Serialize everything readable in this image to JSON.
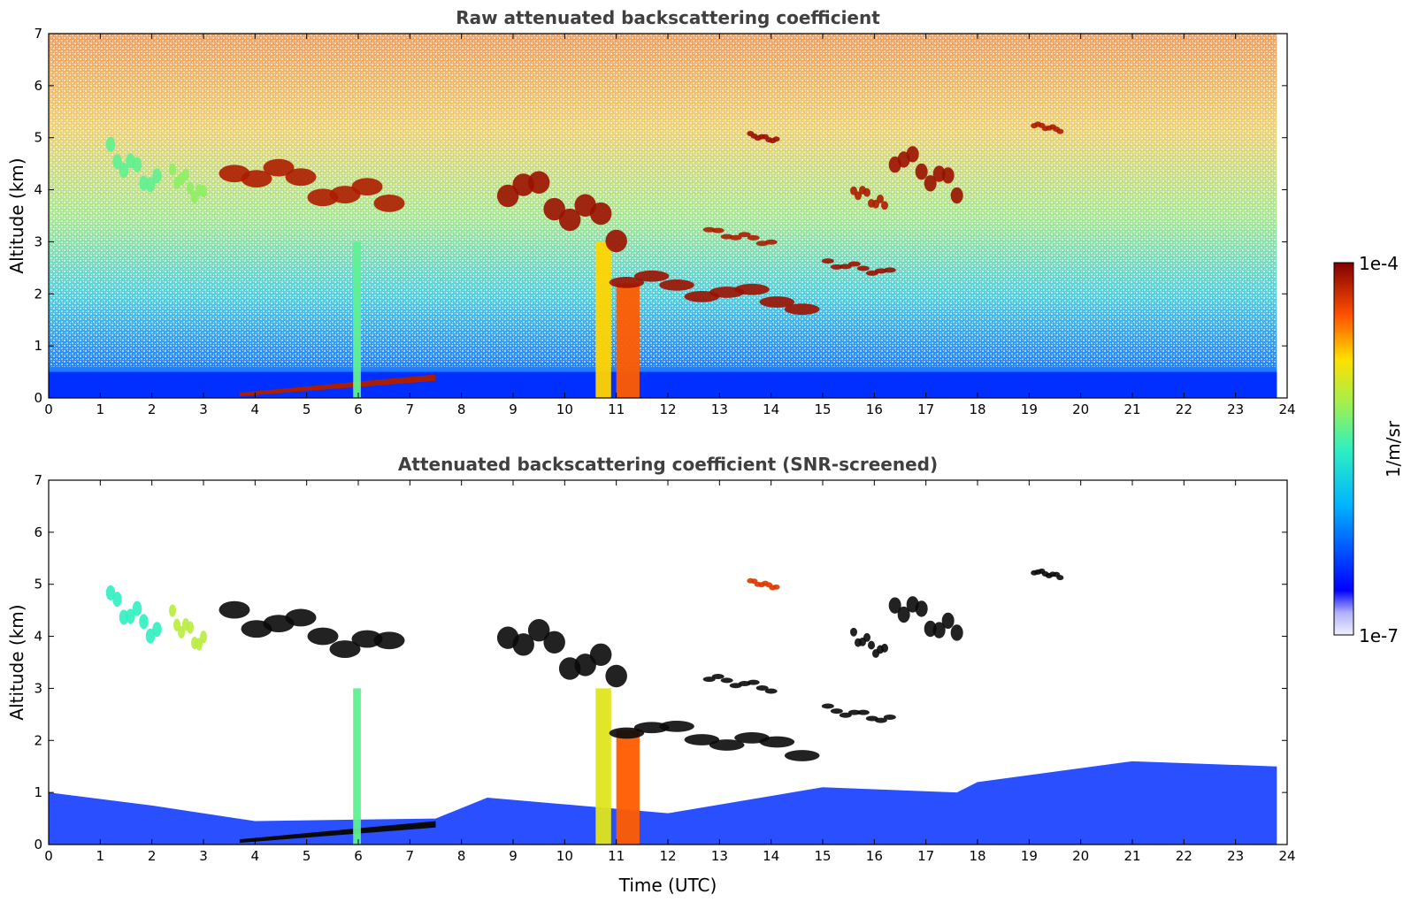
{
  "chart_data": [
    {
      "type": "heatmap",
      "title": "Raw attenuated backscattering coefficient",
      "xlabel": "",
      "ylabel": "Altitude (km)",
      "xlim": [
        0,
        24
      ],
      "ylim": [
        0,
        7
      ],
      "x_ticks": [
        "0",
        "1",
        "2",
        "3",
        "4",
        "5",
        "6",
        "7",
        "8",
        "9",
        "10",
        "11",
        "12",
        "13",
        "14",
        "15",
        "16",
        "17",
        "18",
        "19",
        "20",
        "21",
        "22",
        "23",
        "24"
      ],
      "y_ticks": [
        "0",
        "1",
        "2",
        "3",
        "4",
        "5",
        "6",
        "7"
      ],
      "data_end_hour": 23.8,
      "colorscale": "jet, log",
      "features": [
        {
          "kind": "boundary-layer",
          "x_start": 0,
          "x_end": 23.8,
          "y_bottom": 0,
          "y_top": 0.5,
          "level": 0.18
        },
        {
          "kind": "aerosol-layer-top",
          "x_start": 3.7,
          "x_end": 7.5,
          "y_bottom": 0.1,
          "y_top": 0.45,
          "level": 0.95
        },
        {
          "kind": "precipitation-column",
          "x_start": 5.9,
          "x_end": 6.05,
          "y_bottom": 0,
          "y_top": 3.0,
          "level": 0.55
        },
        {
          "kind": "precipitation-column",
          "x_start": 10.6,
          "x_end": 10.9,
          "y_bottom": 0,
          "y_top": 3.0,
          "level": 0.75
        },
        {
          "kind": "precipitation-column",
          "x_start": 11.0,
          "x_end": 11.45,
          "y_bottom": 0,
          "y_top": 2.2,
          "level": 0.85
        },
        {
          "kind": "cloud",
          "x_start": 1.2,
          "x_end": 2.1,
          "y_bottom": 3.8,
          "y_top": 5.0,
          "level": 0.55
        },
        {
          "kind": "cloud",
          "x_start": 2.4,
          "x_end": 3.0,
          "y_bottom": 3.6,
          "y_top": 4.6,
          "level": 0.6
        },
        {
          "kind": "cloud",
          "x_start": 3.6,
          "x_end": 6.6,
          "y_bottom": 3.4,
          "y_top": 4.8,
          "level": 0.95
        },
        {
          "kind": "cloud",
          "x_start": 8.9,
          "x_end": 11.0,
          "y_bottom": 2.8,
          "y_top": 4.6,
          "level": 0.97
        },
        {
          "kind": "cloud",
          "x_start": 11.2,
          "x_end": 14.6,
          "y_bottom": 1.6,
          "y_top": 2.5,
          "level": 0.97
        },
        {
          "kind": "cloud",
          "x_start": 12.8,
          "x_end": 14.0,
          "y_bottom": 2.9,
          "y_top": 3.3,
          "level": 0.95
        },
        {
          "kind": "cloud",
          "x_start": 13.6,
          "x_end": 14.1,
          "y_bottom": 4.9,
          "y_top": 5.1,
          "level": 0.97
        },
        {
          "kind": "cloud",
          "x_start": 15.1,
          "x_end": 16.3,
          "y_bottom": 2.3,
          "y_top": 2.7,
          "level": 0.97
        },
        {
          "kind": "cloud",
          "x_start": 15.6,
          "x_end": 16.2,
          "y_bottom": 3.5,
          "y_top": 4.2,
          "level": 0.95
        },
        {
          "kind": "cloud",
          "x_start": 16.4,
          "x_end": 17.6,
          "y_bottom": 3.7,
          "y_top": 5.0,
          "level": 0.97
        },
        {
          "kind": "cloud",
          "x_start": 19.1,
          "x_end": 19.6,
          "y_bottom": 5.1,
          "y_top": 5.3,
          "level": 0.95
        }
      ]
    },
    {
      "type": "heatmap",
      "title": "Attenuated backscattering coefficient (SNR-screened)",
      "xlabel": "Time (UTC)",
      "ylabel": "Altitude (km)",
      "xlim": [
        0,
        24
      ],
      "ylim": [
        0,
        7
      ],
      "x_ticks": [
        "0",
        "1",
        "2",
        "3",
        "4",
        "5",
        "6",
        "7",
        "8",
        "9",
        "10",
        "11",
        "12",
        "13",
        "14",
        "15",
        "16",
        "17",
        "18",
        "19",
        "20",
        "21",
        "22",
        "23",
        "24"
      ],
      "y_ticks": [
        "0",
        "1",
        "2",
        "3",
        "4",
        "5",
        "6",
        "7"
      ],
      "data_end_hour": 23.8,
      "colorscale": "jet, log",
      "screened_boundary_layer_top": [
        {
          "x": 0,
          "y": 1.0
        },
        {
          "x": 2,
          "y": 0.75
        },
        {
          "x": 4,
          "y": 0.45
        },
        {
          "x": 7.5,
          "y": 0.5
        },
        {
          "x": 8.5,
          "y": 0.9
        },
        {
          "x": 12,
          "y": 0.6
        },
        {
          "x": 15,
          "y": 1.1
        },
        {
          "x": 17.6,
          "y": 1.0
        },
        {
          "x": 18,
          "y": 1.2
        },
        {
          "x": 21,
          "y": 1.6
        },
        {
          "x": 23.8,
          "y": 1.5
        }
      ],
      "features": [
        {
          "kind": "aerosol-layer-top",
          "x_start": 3.7,
          "x_end": 7.5,
          "y_bottom": 0.1,
          "y_top": 0.45,
          "level": 0.0
        },
        {
          "kind": "precipitation-column",
          "x_start": 5.9,
          "x_end": 6.05,
          "y_bottom": 0,
          "y_top": 3.0,
          "level": 0.55
        },
        {
          "kind": "precipitation-column",
          "x_start": 10.6,
          "x_end": 10.9,
          "y_bottom": 0,
          "y_top": 3.0,
          "level": 0.7
        },
        {
          "kind": "precipitation-column",
          "x_start": 11.0,
          "x_end": 11.45,
          "y_bottom": 0,
          "y_top": 2.2,
          "level": 0.85
        },
        {
          "kind": "cloud",
          "x_start": 1.2,
          "x_end": 2.1,
          "y_bottom": 3.8,
          "y_top": 5.0,
          "level": 0.5
        },
        {
          "kind": "cloud",
          "x_start": 2.4,
          "x_end": 3.0,
          "y_bottom": 3.6,
          "y_top": 4.6,
          "level": 0.65
        },
        {
          "kind": "cloud",
          "x_start": 3.6,
          "x_end": 6.6,
          "y_bottom": 3.4,
          "y_top": 4.8,
          "level": 0.0
        },
        {
          "kind": "cloud",
          "x_start": 8.9,
          "x_end": 11.0,
          "y_bottom": 2.8,
          "y_top": 4.6,
          "level": 0.0
        },
        {
          "kind": "cloud",
          "x_start": 11.2,
          "x_end": 14.6,
          "y_bottom": 1.6,
          "y_top": 2.5,
          "level": 0.0
        },
        {
          "kind": "cloud",
          "x_start": 12.8,
          "x_end": 14.0,
          "y_bottom": 2.9,
          "y_top": 3.3,
          "level": 0.0
        },
        {
          "kind": "cloud",
          "x_start": 13.6,
          "x_end": 14.1,
          "y_bottom": 4.9,
          "y_top": 5.1,
          "level": 0.9
        },
        {
          "kind": "cloud",
          "x_start": 15.1,
          "x_end": 16.3,
          "y_bottom": 2.3,
          "y_top": 2.7,
          "level": 0.0
        },
        {
          "kind": "cloud",
          "x_start": 15.6,
          "x_end": 16.2,
          "y_bottom": 3.5,
          "y_top": 4.2,
          "level": 0.0
        },
        {
          "kind": "cloud",
          "x_start": 16.4,
          "x_end": 17.6,
          "y_bottom": 3.7,
          "y_top": 5.0,
          "level": 0.0
        },
        {
          "kind": "cloud",
          "x_start": 19.1,
          "x_end": 19.6,
          "y_bottom": 5.1,
          "y_top": 5.3,
          "level": 0.0
        }
      ]
    }
  ],
  "colorbar": {
    "label": "1/m/sr",
    "max_label": "1e-4",
    "min_label": "1e-7"
  }
}
